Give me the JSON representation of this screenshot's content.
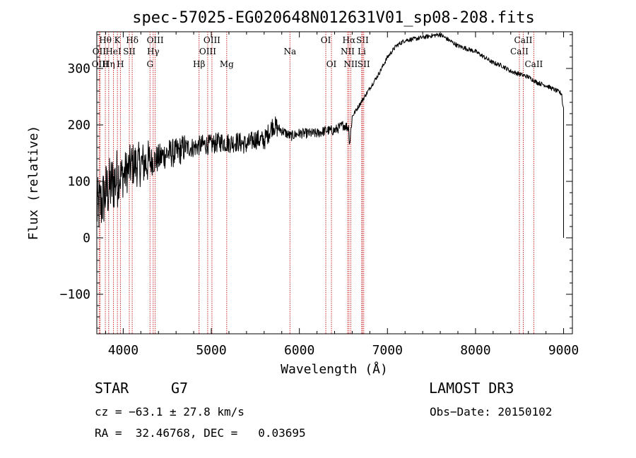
{
  "chart_data": {
    "type": "line",
    "title": "spec-57025-EG020648N012631V01_sp08-208.fits",
    "xlabel": "Wavelength (Å)",
    "ylabel": "Flux (relative)",
    "xlim": [
      3700,
      9100
    ],
    "ylim": [
      -170,
      365
    ],
    "xticks": [
      4000,
      5000,
      6000,
      7000,
      8000,
      9000
    ],
    "yticks": [
      -100,
      0,
      100,
      200,
      300
    ],
    "xtick_labels": [
      "4000",
      "5000",
      "6000",
      "7000",
      "8000",
      "9000"
    ],
    "ytick_labels": [
      "−100",
      "0",
      "100",
      "200",
      "300"
    ],
    "spectrum": {
      "name": "flux",
      "x": [
        3700,
        3750,
        3800,
        3850,
        3900,
        3950,
        4000,
        4050,
        4100,
        4200,
        4300,
        4400,
        4500,
        4600,
        4700,
        4800,
        4900,
        5000,
        5100,
        5200,
        5300,
        5400,
        5500,
        5600,
        5700,
        5750,
        5800,
        5900,
        6000,
        6100,
        6200,
        6300,
        6400,
        6500,
        6560,
        6570,
        6600,
        6700,
        6800,
        6900,
        7000,
        7100,
        7200,
        7300,
        7400,
        7500,
        7600,
        7700,
        7800,
        7900,
        8000,
        8100,
        8200,
        8300,
        8400,
        8500,
        8600,
        8700,
        8800,
        8900,
        8950,
        8980,
        8990,
        9000
      ],
      "y": [
        50,
        60,
        80,
        90,
        100,
        110,
        110,
        120,
        130,
        130,
        135,
        140,
        150,
        150,
        160,
        160,
        165,
        165,
        170,
        168,
        170,
        165,
        175,
        172,
        200,
        195,
        190,
        180,
        185,
        185,
        185,
        190,
        190,
        200,
        195,
        165,
        215,
        240,
        265,
        290,
        320,
        340,
        350,
        352,
        355,
        358,
        360,
        350,
        340,
        335,
        330,
        320,
        310,
        305,
        295,
        290,
        285,
        275,
        270,
        262,
        258,
        255,
        230,
        0
      ]
    },
    "emission_lines": [
      {
        "name": "Hθ",
        "wavelength": 3797,
        "row": 0
      },
      {
        "name": "OII",
        "wavelength": 3727,
        "row": 1
      },
      {
        "name": "OIII",
        "wavelength": 3738,
        "row": 2
      },
      {
        "name": "Hη",
        "wavelength": 3835,
        "row": 2
      },
      {
        "name": "HeI",
        "wavelength": 3889,
        "row": 1
      },
      {
        "name": "K",
        "wavelength": 3934,
        "row": 0
      },
      {
        "name": "H",
        "wavelength": 3968,
        "row": 2
      },
      {
        "name": "SII",
        "wavelength": 4069,
        "row": 1
      },
      {
        "name": "Hδ",
        "wavelength": 4102,
        "row": 0
      },
      {
        "name": "G",
        "wavelength": 4304,
        "row": 2
      },
      {
        "name": "Hγ",
        "wavelength": 4340,
        "row": 1
      },
      {
        "name": "OIII",
        "wavelength": 4363,
        "row": 0
      },
      {
        "name": "Hβ",
        "wavelength": 4861,
        "row": 2
      },
      {
        "name": "OIII",
        "wavelength": 4959,
        "row": 1
      },
      {
        "name": "OIII",
        "wavelength": 5007,
        "row": 0
      },
      {
        "name": "Mg",
        "wavelength": 5175,
        "row": 2
      },
      {
        "name": "Na",
        "wavelength": 5893,
        "row": 1
      },
      {
        "name": "OI",
        "wavelength": 6300,
        "row": 0
      },
      {
        "name": "OI",
        "wavelength": 6364,
        "row": 2
      },
      {
        "name": "NII",
        "wavelength": 6548,
        "row": 1
      },
      {
        "name": "Hα",
        "wavelength": 6563,
        "row": 0
      },
      {
        "name": "NII",
        "wavelength": 6583,
        "row": 2
      },
      {
        "name": "Li",
        "wavelength": 6708,
        "row": 1
      },
      {
        "name": "SII",
        "wavelength": 6716,
        "row": 0
      },
      {
        "name": "SII",
        "wavelength": 6731,
        "row": 2
      },
      {
        "name": "CaII",
        "wavelength": 8498,
        "row": 1
      },
      {
        "name": "CaII",
        "wavelength": 8542,
        "row": 0
      },
      {
        "name": "CaII",
        "wavelength": 8662,
        "row": 2
      }
    ]
  },
  "info": {
    "object_class": "STAR",
    "subclass": "G7",
    "survey": "LAMOST DR3",
    "redshift_line": "cz = −63.1 ± 27.8 km/s",
    "obs_date_line": "Obs−Date: 20150102",
    "coords_line": "RA =  32.46768, DEC =   0.03695"
  },
  "colors": {
    "line_marker": "#cc2a2a",
    "spectrum": "#000000",
    "axes": "#000000"
  }
}
